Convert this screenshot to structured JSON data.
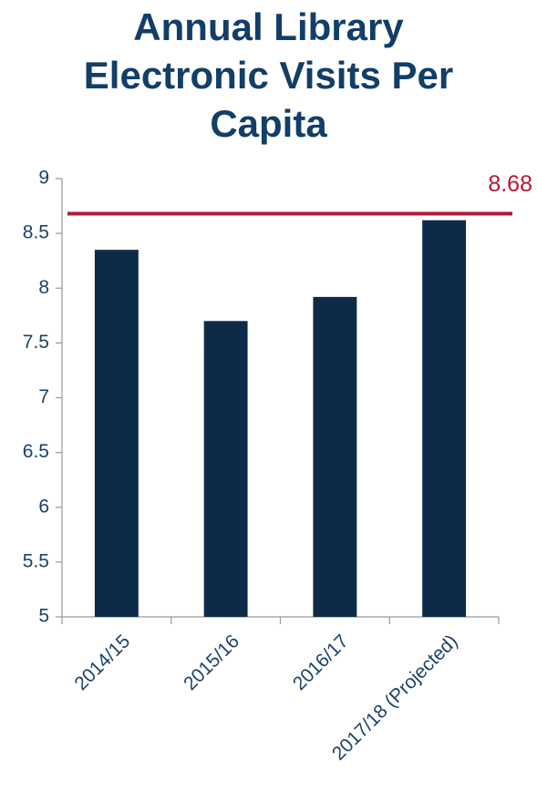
{
  "chart_data": {
    "type": "bar",
    "title": "Annual Library Electronic Visits Per Capita",
    "categories": [
      "2014/15",
      "2015/16",
      "2016/17",
      "2017/18 (Projected)"
    ],
    "values": [
      8.35,
      7.7,
      7.92,
      8.62
    ],
    "color": "#0d2b48",
    "ylim": [
      5,
      9
    ],
    "yticks": [
      5,
      5.5,
      6,
      6.5,
      7,
      7.5,
      8,
      8.5,
      9
    ],
    "reference_line": {
      "value": 8.68,
      "color": "#b5163a"
    }
  }
}
